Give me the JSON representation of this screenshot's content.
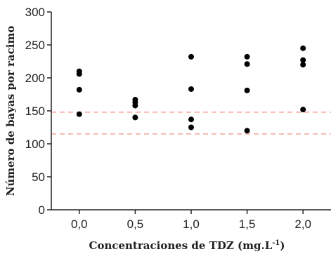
{
  "chart_data": {
    "type": "scatter",
    "title": "",
    "xlabel": "Concentraciones de TDZ (mg.L",
    "xlabel_sup": "-1",
    "xlabel_end": ")",
    "ylabel": "Número de bayas por racimo",
    "xlim": [
      -0.25,
      2.25
    ],
    "ylim": [
      0,
      300
    ],
    "x_ticks": [
      "0,0",
      "0,5",
      "1,0",
      "1,5",
      "2,0"
    ],
    "x_tick_values": [
      0,
      0.5,
      1.0,
      1.5,
      2.0
    ],
    "y_ticks": [
      "0",
      "50",
      "100",
      "150",
      "200",
      "250",
      "300"
    ],
    "y_tick_values": [
      0,
      50,
      100,
      150,
      200,
      250,
      300
    ],
    "grid": false,
    "legend": "none",
    "series": [
      {
        "color": "#000000",
        "points": [
          {
            "x": 0.0,
            "y": 210
          },
          {
            "x": 0.0,
            "y": 206
          },
          {
            "x": 0.0,
            "y": 182
          },
          {
            "x": 0.0,
            "y": 145
          },
          {
            "x": 0.5,
            "y": 167
          },
          {
            "x": 0.5,
            "y": 163
          },
          {
            "x": 0.5,
            "y": 158
          },
          {
            "x": 0.5,
            "y": 140
          },
          {
            "x": 1.0,
            "y": 232
          },
          {
            "x": 1.0,
            "y": 183
          },
          {
            "x": 1.0,
            "y": 137
          },
          {
            "x": 1.0,
            "y": 125
          },
          {
            "x": 1.5,
            "y": 232
          },
          {
            "x": 1.5,
            "y": 221
          },
          {
            "x": 1.5,
            "y": 181
          },
          {
            "x": 1.5,
            "y": 120
          },
          {
            "x": 2.0,
            "y": 245
          },
          {
            "x": 2.0,
            "y": 227
          },
          {
            "x": 2.0,
            "y": 220
          },
          {
            "x": 2.0,
            "y": 152
          }
        ]
      }
    ],
    "reference_lines": [
      {
        "y": 148,
        "color": "#f4a59a",
        "style": "dashed"
      },
      {
        "y": 115,
        "color": "#f4a59a",
        "style": "dashed"
      }
    ]
  }
}
